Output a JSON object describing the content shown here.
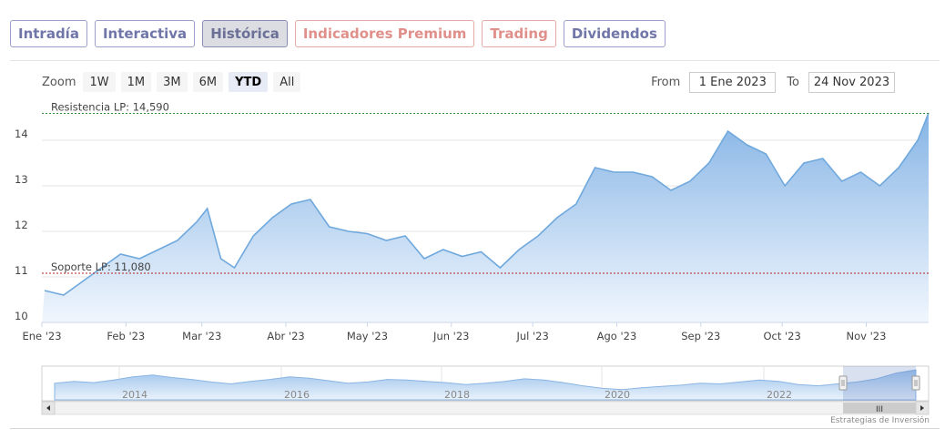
{
  "tabs": [
    {
      "label": "Intradía",
      "state": "normal"
    },
    {
      "label": "Interactiva",
      "state": "normal"
    },
    {
      "label": "Histórica",
      "state": "active"
    },
    {
      "label": "Indicadores Premium",
      "state": "premium"
    },
    {
      "label": "Trading",
      "state": "premium"
    },
    {
      "label": "Dividendos",
      "state": "normal"
    }
  ],
  "zoom": {
    "label": "Zoom",
    "buttons": [
      "1W",
      "1M",
      "3M",
      "6M",
      "YTD",
      "All"
    ],
    "active": "YTD"
  },
  "range": {
    "from_label": "From",
    "from_value": "1 Ene 2023",
    "to_label": "To",
    "to_value": "24 Nov 2023"
  },
  "credit": "Estrategias de Inversión",
  "colors": {
    "line": "#6fa8dc",
    "fill_top": "#8cb8e8",
    "resistance": "#2e8b2e",
    "support": "#b22222",
    "grid": "#e6e6e6"
  },
  "chart_data": {
    "type": "area",
    "ylim": [
      10,
      14.8
    ],
    "yticks": [
      "10",
      "11",
      "12",
      "13",
      "14"
    ],
    "x_tick_labels": [
      "Ene '23",
      "Feb '23",
      "Mar '23",
      "Abr '23",
      "May '23",
      "Jun '23",
      "Jul '23",
      "Ago '23",
      "Sep '23",
      "Oct '23",
      "Nov '23"
    ],
    "x": [
      "2023-01-02",
      "2023-01-09",
      "2023-01-16",
      "2023-01-23",
      "2023-01-30",
      "2023-02-06",
      "2023-02-13",
      "2023-02-20",
      "2023-02-27",
      "2023-03-03",
      "2023-03-08",
      "2023-03-13",
      "2023-03-20",
      "2023-03-27",
      "2023-04-03",
      "2023-04-10",
      "2023-04-17",
      "2023-04-24",
      "2023-05-01",
      "2023-05-08",
      "2023-05-15",
      "2023-05-22",
      "2023-05-29",
      "2023-06-05",
      "2023-06-12",
      "2023-06-19",
      "2023-06-26",
      "2023-07-03",
      "2023-07-10",
      "2023-07-17",
      "2023-07-24",
      "2023-07-31",
      "2023-08-07",
      "2023-08-14",
      "2023-08-21",
      "2023-08-28",
      "2023-09-04",
      "2023-09-11",
      "2023-09-18",
      "2023-09-25",
      "2023-10-02",
      "2023-10-09",
      "2023-10-16",
      "2023-10-23",
      "2023-10-30",
      "2023-11-06",
      "2023-11-13",
      "2023-11-20",
      "2023-11-24"
    ],
    "values": [
      10.7,
      10.6,
      10.9,
      11.2,
      11.5,
      11.4,
      11.6,
      11.8,
      12.2,
      12.5,
      11.4,
      11.2,
      11.9,
      12.3,
      12.6,
      12.7,
      12.1,
      12.0,
      11.95,
      11.8,
      11.9,
      11.4,
      11.6,
      11.45,
      11.55,
      11.2,
      11.6,
      11.9,
      12.3,
      12.6,
      13.4,
      13.3,
      13.3,
      13.2,
      12.9,
      13.1,
      13.5,
      14.2,
      13.9,
      13.7,
      13.0,
      13.5,
      13.6,
      13.1,
      13.3,
      13.0,
      13.4,
      14.0,
      14.6
    ],
    "annotations": [
      {
        "label": "Resistencia LP: 14,590",
        "value": 14.59
      },
      {
        "label": "Soporte LP: 11,080",
        "value": 11.08
      }
    ]
  },
  "navigator": {
    "year_labels": [
      "2014",
      "2016",
      "2018",
      "2020",
      "2022"
    ],
    "scroll_grip": "III"
  }
}
